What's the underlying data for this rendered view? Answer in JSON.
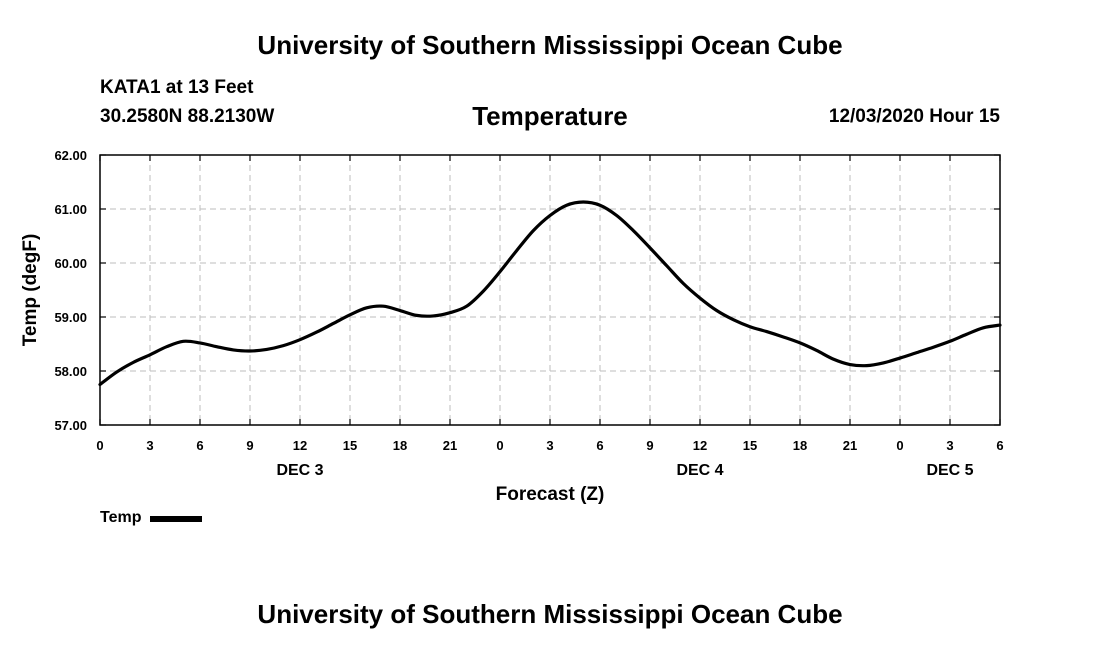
{
  "header": {
    "title": "University of Southern Mississippi Ocean Cube",
    "station": "KATA1 at 13 Feet",
    "coords": "30.2580N 88.2130W",
    "parameter": "Temperature",
    "timestamp": "12/03/2020 Hour 15"
  },
  "footer": {
    "title": "University of Southern Mississippi Ocean Cube"
  },
  "chart_data": {
    "type": "line",
    "ylabel": "Temp (degF)",
    "xlabel": "Forecast (Z)",
    "ylim": [
      57,
      62
    ],
    "yticks": [
      "57.00",
      "58.00",
      "59.00",
      "60.00",
      "61.00",
      "62.00"
    ],
    "xlim": [
      0,
      54
    ],
    "xticks": [
      0,
      3,
      6,
      9,
      12,
      15,
      18,
      21,
      24,
      27,
      30,
      33,
      36,
      39,
      42,
      45,
      48,
      51,
      54
    ],
    "xtick_labels": [
      "0",
      "3",
      "6",
      "9",
      "12",
      "15",
      "18",
      "21",
      "0",
      "3",
      "6",
      "9",
      "12",
      "15",
      "18",
      "21",
      "0",
      "3",
      "6"
    ],
    "date_labels": [
      {
        "x": 12,
        "label": "DEC 3"
      },
      {
        "x": 36,
        "label": "DEC 4"
      },
      {
        "x": 51,
        "label": "DEC 5"
      }
    ],
    "grid": true,
    "series": [
      {
        "name": "Temp",
        "color": "#000000",
        "x": [
          0,
          1,
          2,
          3,
          4,
          5,
          6,
          7,
          8,
          9,
          10,
          11,
          12,
          13,
          14,
          15,
          16,
          17,
          18,
          19,
          20,
          21,
          22,
          23,
          24,
          25,
          26,
          27,
          28,
          29,
          30,
          31,
          32,
          33,
          34,
          35,
          36,
          37,
          38,
          39,
          40,
          41,
          42,
          43,
          44,
          45,
          46,
          47,
          48,
          49,
          50,
          51,
          52,
          53,
          54
        ],
        "values": [
          57.75,
          57.98,
          58.16,
          58.3,
          58.45,
          58.55,
          58.52,
          58.45,
          58.39,
          58.37,
          58.4,
          58.47,
          58.58,
          58.72,
          58.88,
          59.04,
          59.17,
          59.2,
          59.12,
          59.03,
          59.02,
          59.08,
          59.2,
          59.48,
          59.84,
          60.23,
          60.6,
          60.88,
          61.07,
          61.13,
          61.07,
          60.88,
          60.6,
          60.28,
          59.95,
          59.62,
          59.35,
          59.12,
          58.95,
          58.82,
          58.73,
          58.63,
          58.52,
          58.38,
          58.22,
          58.12,
          58.1,
          58.15,
          58.24,
          58.34,
          58.44,
          58.55,
          58.68,
          58.8,
          58.85
        ]
      }
    ],
    "legend": {
      "label": "Temp",
      "placement": "bottom-left"
    }
  }
}
